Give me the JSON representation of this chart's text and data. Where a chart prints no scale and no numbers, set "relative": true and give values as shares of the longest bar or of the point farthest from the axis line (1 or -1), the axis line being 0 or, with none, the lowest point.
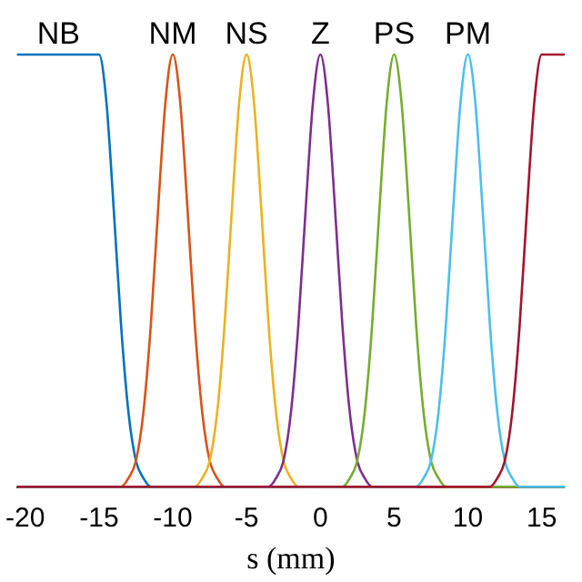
{
  "chart_data": {
    "type": "line",
    "relative": true,
    "xlabel": "s (mm)",
    "xlim": [
      -20.5,
      16.5
    ],
    "xticks": [
      -20,
      -15,
      -10,
      -5,
      0,
      5,
      10,
      15
    ],
    "grid": false,
    "legend": false,
    "marker": "none",
    "line_style": "solid",
    "series": [
      {
        "name": "NB",
        "color": "#0072bd",
        "x": [
          -20.5,
          -15,
          -14.5,
          -14,
          -13.5,
          -13,
          -12.5,
          -12,
          -11.5,
          16.5
        ],
        "values": [
          1,
          1,
          0.89,
          0.64,
          0.37,
          0.17,
          0.06,
          0.02,
          0,
          0
        ]
      },
      {
        "name": "NM",
        "color": "#d95319",
        "x": [
          -20.5,
          -13.5,
          -13,
          -12.5,
          -12,
          -11.5,
          -11,
          -10.5,
          -10,
          -9.5,
          -9,
          -8.5,
          -8,
          -7.5,
          -7,
          -6.5,
          16.5
        ],
        "values": [
          0,
          0,
          0.02,
          0.06,
          0.17,
          0.37,
          0.64,
          0.89,
          1,
          0.89,
          0.64,
          0.37,
          0.17,
          0.06,
          0.02,
          0,
          0
        ]
      },
      {
        "name": "NS",
        "color": "#edb120",
        "x": [
          -20.5,
          -8.5,
          -8,
          -7.5,
          -7,
          -6.5,
          -6,
          -5.5,
          -5,
          -4.5,
          -4,
          -3.5,
          -3,
          -2.5,
          -2,
          -1.5,
          16.5
        ],
        "values": [
          0,
          0,
          0.02,
          0.06,
          0.17,
          0.37,
          0.64,
          0.89,
          1,
          0.89,
          0.64,
          0.37,
          0.17,
          0.06,
          0.02,
          0,
          0
        ]
      },
      {
        "name": "Z",
        "color": "#7e2f8e",
        "x": [
          -20.5,
          -3.5,
          -3,
          -2.5,
          -2,
          -1.5,
          -1,
          -0.5,
          0,
          0.5,
          1,
          1.5,
          2,
          2.5,
          3,
          3.5,
          16.5
        ],
        "values": [
          0,
          0,
          0.02,
          0.06,
          0.17,
          0.37,
          0.64,
          0.89,
          1,
          0.89,
          0.64,
          0.37,
          0.17,
          0.06,
          0.02,
          0,
          0
        ]
      },
      {
        "name": "PS",
        "color": "#77ac30",
        "x": [
          -20.5,
          1.5,
          2,
          2.5,
          3,
          3.5,
          4,
          4.5,
          5,
          5.5,
          6,
          6.5,
          7,
          7.5,
          8,
          8.5,
          16.5
        ],
        "values": [
          0,
          0,
          0.02,
          0.06,
          0.17,
          0.37,
          0.64,
          0.89,
          1,
          0.89,
          0.64,
          0.37,
          0.17,
          0.06,
          0.02,
          0,
          0
        ]
      },
      {
        "name": "PM",
        "color": "#4dbeee",
        "x": [
          -20.5,
          6.5,
          7,
          7.5,
          8,
          8.5,
          9,
          9.5,
          10,
          10.5,
          11,
          11.5,
          12,
          12.5,
          13,
          13.5,
          16.5
        ],
        "values": [
          0,
          0,
          0.02,
          0.06,
          0.17,
          0.37,
          0.64,
          0.89,
          1,
          0.89,
          0.64,
          0.37,
          0.17,
          0.06,
          0.02,
          0,
          0
        ]
      },
      {
        "color": "#a2142f",
        "x": [
          -20.5,
          11.5,
          12,
          12.5,
          13,
          13.5,
          14,
          14.5,
          15,
          16.5
        ],
        "values": [
          0,
          0,
          0.02,
          0.06,
          0.17,
          0.37,
          0.64,
          0.89,
          1,
          1
        ]
      }
    ]
  }
}
